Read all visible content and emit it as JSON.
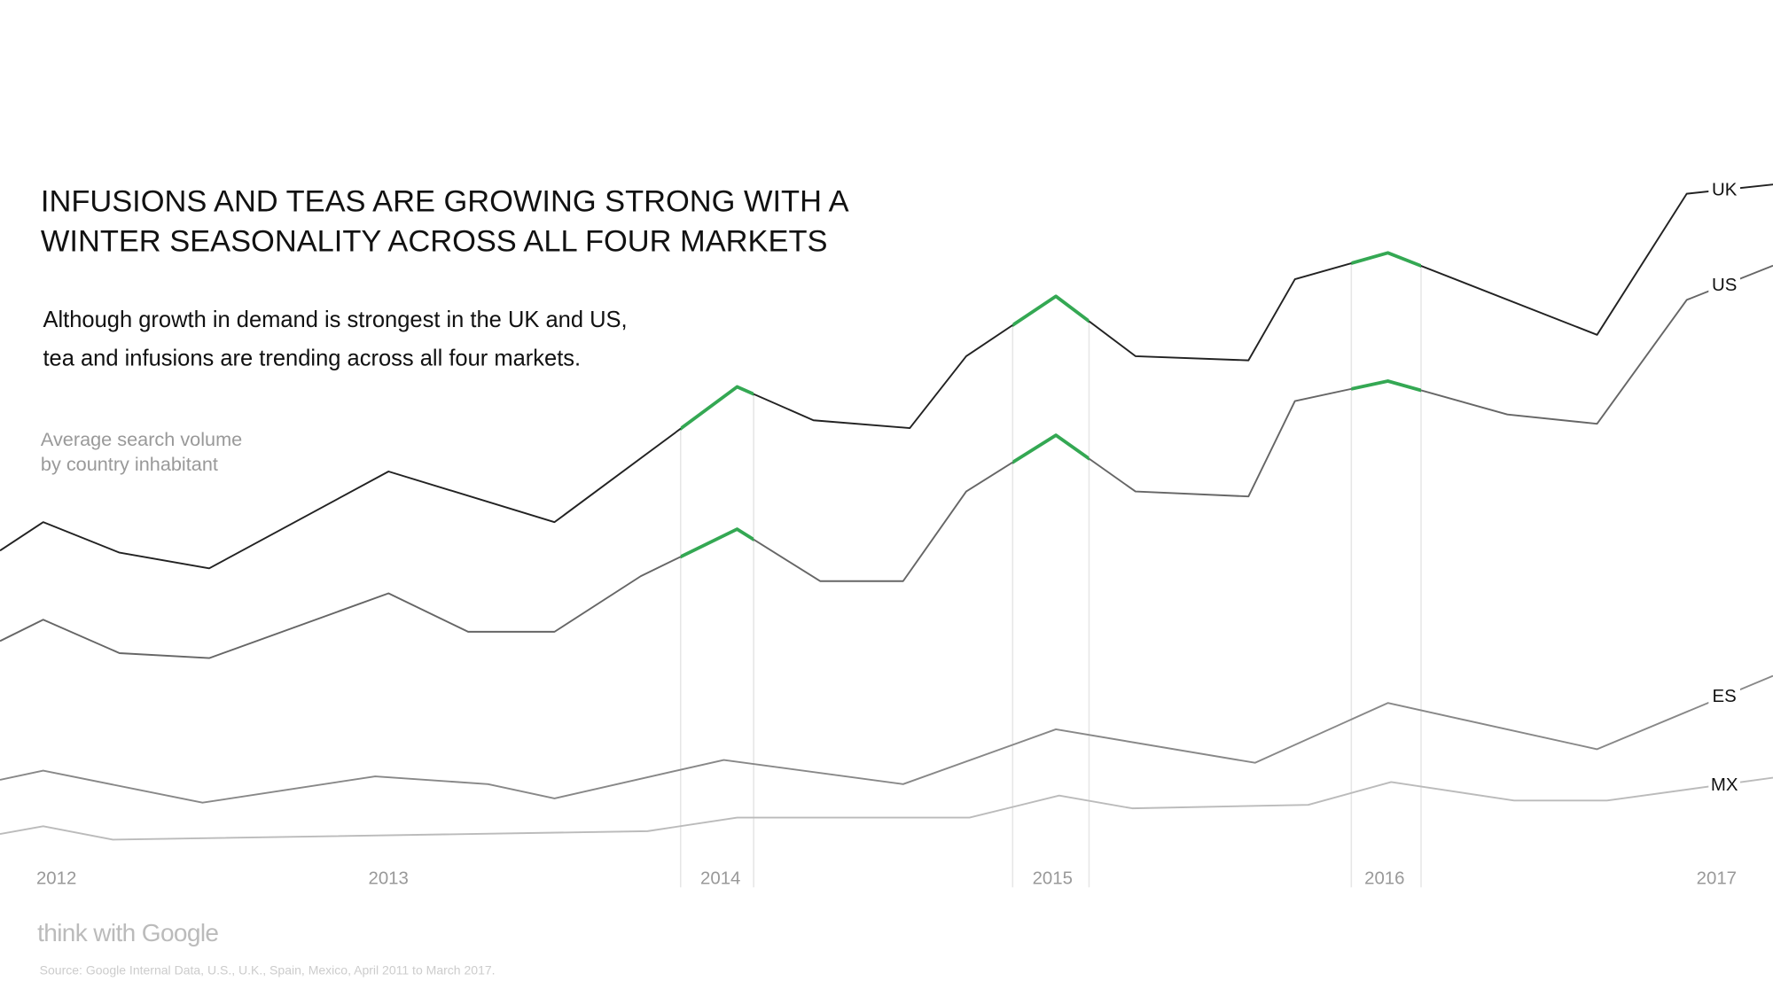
{
  "chart_data": {
    "type": "line",
    "title": [
      "INFUSIONS AND TEAS ARE GROWING STRONG WITH A",
      "WINTER SEASONALITY ACROSS ALL FOUR MARKETS"
    ],
    "subtitle": [
      "Although growth in demand is strongest in the UK and US,",
      "tea and infusions are trending across all four markets."
    ],
    "y_label": [
      "Average search volume",
      "by country inhabitant"
    ],
    "logo": "think with Google",
    "source": "Source: Google Internal Data, U.S., U.K., Spain, Mexico, April 2011 to March 2017.",
    "xlim": [
      2011.83,
      2017.17
    ],
    "xticks": [
      2012,
      2013,
      2014,
      2015,
      2016,
      2017
    ],
    "ylim": [
      0,
      100
    ],
    "highlight_color": "#34a853",
    "highlight_ranges": [
      [
        2013.88,
        2014.1
      ],
      [
        2014.88,
        2015.11
      ],
      [
        2015.9,
        2016.11
      ]
    ],
    "series": [
      {
        "name": "UK",
        "color": "#222222",
        "highlight": true,
        "x": [
          2011.83,
          2011.96,
          2012.19,
          2012.46,
          2013.0,
          2013.5,
          2014.05,
          2014.28,
          2014.57,
          2014.74,
          2015.01,
          2015.25,
          2015.59,
          2015.73,
          2016.01,
          2016.64,
          2016.91,
          2017.17
        ],
        "values": [
          46.5,
          50.5,
          46.2,
          44,
          57.6,
          50.5,
          69.5,
          64.8,
          63.7,
          73.8,
          82.2,
          73.8,
          73.2,
          84.6,
          88.3,
          76.8,
          96.6,
          97.9
        ]
      },
      {
        "name": "US",
        "color": "#666666",
        "highlight": true,
        "x": [
          2011.83,
          2011.96,
          2012.19,
          2012.46,
          2013.0,
          2013.24,
          2013.5,
          2013.76,
          2014.05,
          2014.3,
          2014.55,
          2014.74,
          2015.01,
          2015.25,
          2015.59,
          2015.73,
          2016.01,
          2016.37,
          2016.64,
          2016.91,
          2017.17
        ],
        "values": [
          33.8,
          36.8,
          32.1,
          31.4,
          40.5,
          35.1,
          35.1,
          42.9,
          49.5,
          42.2,
          42.2,
          54.8,
          62.7,
          54.8,
          54.1,
          67.5,
          70.3,
          65.6,
          64.3,
          81.7,
          86.5
        ]
      },
      {
        "name": "ES",
        "color": "#888888",
        "highlight": false,
        "x": [
          2011.83,
          2011.96,
          2012.44,
          2012.96,
          2013.3,
          2013.5,
          2014.01,
          2014.55,
          2015.01,
          2015.61,
          2016.01,
          2016.64,
          2017.17
        ],
        "values": [
          14.3,
          15.6,
          11.1,
          14.8,
          13.7,
          11.7,
          17.1,
          13.7,
          21.4,
          16.7,
          25.1,
          18.6,
          28.9
        ]
      },
      {
        "name": "MX",
        "color": "#bbbbbb",
        "highlight": false,
        "x": [
          2011.83,
          2011.96,
          2012.17,
          2013.78,
          2014.05,
          2014.75,
          2015.02,
          2015.24,
          2015.77,
          2016.02,
          2016.39,
          2016.67,
          2017.17
        ],
        "values": [
          6.7,
          7.8,
          5.9,
          7.1,
          9.0,
          9.0,
          12.1,
          10.3,
          10.8,
          14.0,
          11.4,
          11.4,
          14.6
        ]
      }
    ]
  }
}
